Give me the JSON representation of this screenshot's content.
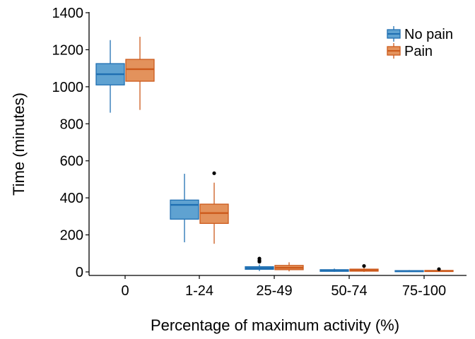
{
  "chart_data": {
    "type": "boxplot",
    "xlabel": "Percentage of maximum activity (%)",
    "ylabel": "Time (minutes)",
    "ylim": [
      0,
      1400
    ],
    "yticks": [
      0,
      200,
      400,
      600,
      800,
      1000,
      1200,
      1400
    ],
    "categories": [
      "0",
      "1-24",
      "25-49",
      "50-74",
      "75-100"
    ],
    "grid": false,
    "legend_position": "top-right",
    "series": [
      {
        "name": "No pain",
        "fill": "#5fa2d1",
        "stroke": "#1f6fb2",
        "boxes": [
          {
            "whisker_low": 860,
            "q1": 1010,
            "median": 1068,
            "q3": 1125,
            "whisker_high": 1252,
            "outliers": []
          },
          {
            "whisker_low": 160,
            "q1": 285,
            "median": 362,
            "q3": 388,
            "whisker_high": 530,
            "outliers": []
          },
          {
            "whisker_low": 5,
            "q1": 14,
            "median": 20,
            "q3": 28,
            "whisker_high": 40,
            "outliers": [
              55,
              62,
              72
            ]
          },
          {
            "whisker_low": 0,
            "q1": 3,
            "median": 7,
            "q3": 12,
            "whisker_high": 18,
            "outliers": []
          },
          {
            "whisker_low": 0,
            "q1": 2,
            "median": 4,
            "q3": 7,
            "whisker_high": 10,
            "outliers": []
          }
        ]
      },
      {
        "name": "Pain",
        "fill": "#e3925c",
        "stroke": "#cc5a1c",
        "boxes": [
          {
            "whisker_low": 875,
            "q1": 1030,
            "median": 1095,
            "q3": 1148,
            "whisker_high": 1270,
            "outliers": []
          },
          {
            "whisker_low": 152,
            "q1": 262,
            "median": 318,
            "q3": 366,
            "whisker_high": 482,
            "outliers": [
              533
            ]
          },
          {
            "whisker_low": 3,
            "q1": 12,
            "median": 22,
            "q3": 35,
            "whisker_high": 52,
            "outliers": []
          },
          {
            "whisker_low": 0,
            "q1": 4,
            "median": 9,
            "q3": 15,
            "whisker_high": 22,
            "outliers": [
              32
            ]
          },
          {
            "whisker_low": 0,
            "q1": 2,
            "median": 5,
            "q3": 8,
            "whisker_high": 12,
            "outliers": [
              15
            ]
          }
        ]
      }
    ]
  }
}
